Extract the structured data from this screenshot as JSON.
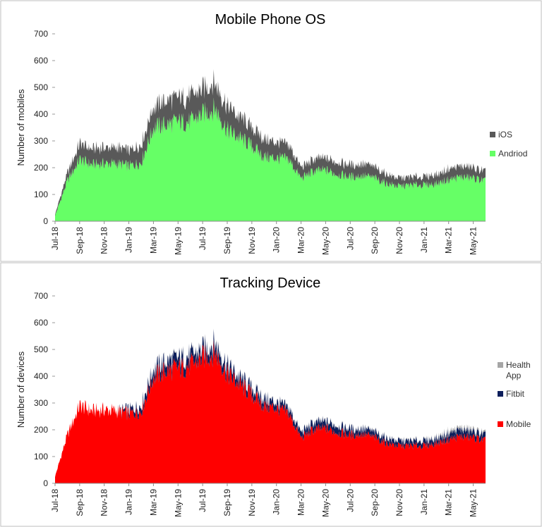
{
  "chart_data": [
    {
      "type": "area",
      "stacked": true,
      "title": "Mobile Phone OS",
      "xlabel": "",
      "ylabel": "Number of mobiles",
      "ylim": [
        0,
        700
      ],
      "yticks": [
        0,
        100,
        200,
        300,
        400,
        500,
        600,
        700
      ],
      "xticks": [
        "Jul-18",
        "Sep-18",
        "Nov-18",
        "Jan-19",
        "Mar-19",
        "May-19",
        "Jul-19",
        "Sep-19",
        "Nov-19",
        "Jan-20",
        "Mar-20",
        "May-20",
        "Jul-20",
        "Sep-20",
        "Nov-20",
        "Jan-21",
        "Mar-21",
        "May-21"
      ],
      "grid": false,
      "legend_position": "right",
      "x": [
        "Jul-18",
        "Aug-18",
        "Sep-18",
        "Oct-18",
        "Nov-18",
        "Dec-18",
        "Jan-19",
        "Feb-19",
        "Mar-19",
        "Apr-19",
        "May-19",
        "Jun-19",
        "Jul-19",
        "Aug-19",
        "Sep-19",
        "Oct-19",
        "Nov-19",
        "Dec-19",
        "Jan-20",
        "Feb-20",
        "Mar-20",
        "Apr-20",
        "May-20",
        "Jun-20",
        "Jul-20",
        "Aug-20",
        "Sep-20",
        "Oct-20",
        "Nov-20",
        "Dec-20",
        "Jan-21",
        "Feb-21",
        "Mar-21",
        "Apr-21",
        "May-21",
        "Jun-21"
      ],
      "series": [
        {
          "name": "Andriod",
          "color": "#66ff66",
          "values": [
            20,
            150,
            230,
            210,
            215,
            215,
            205,
            220,
            350,
            360,
            370,
            370,
            400,
            420,
            340,
            310,
            280,
            240,
            235,
            230,
            160,
            185,
            190,
            175,
            165,
            170,
            160,
            140,
            130,
            135,
            135,
            140,
            155,
            165,
            160,
            150
          ]
        },
        {
          "name": "iOS",
          "color": "#595959",
          "values": [
            5,
            30,
            60,
            60,
            60,
            60,
            60,
            65,
            80,
            90,
            90,
            95,
            95,
            100,
            90,
            80,
            70,
            65,
            60,
            55,
            40,
            45,
            45,
            45,
            45,
            45,
            40,
            35,
            30,
            30,
            30,
            35,
            40,
            40,
            40,
            35
          ]
        }
      ]
    },
    {
      "type": "area",
      "stacked": true,
      "title": "Tracking Device",
      "xlabel": "",
      "ylabel": "Number of devices",
      "ylim": [
        0,
        700
      ],
      "yticks": [
        0,
        100,
        200,
        300,
        400,
        500,
        600,
        700
      ],
      "xticks": [
        "Jul-18",
        "Sep-18",
        "Nov-18",
        "Jan-19",
        "Mar-19",
        "May-19",
        "Jul-19",
        "Sep-19",
        "Nov-19",
        "Jan-20",
        "Mar-20",
        "May-20",
        "Jul-20",
        "Sep-20",
        "Nov-20",
        "Jan-21",
        "Mar-21",
        "May-21"
      ],
      "grid": false,
      "legend_position": "right",
      "x": [
        "Jul-18",
        "Aug-18",
        "Sep-18",
        "Oct-18",
        "Nov-18",
        "Dec-18",
        "Jan-19",
        "Feb-19",
        "Mar-19",
        "Apr-19",
        "May-19",
        "Jun-19",
        "Jul-19",
        "Aug-19",
        "Sep-19",
        "Oct-19",
        "Nov-19",
        "Dec-19",
        "Jan-20",
        "Feb-20",
        "Mar-20",
        "Apr-20",
        "May-20",
        "Jun-20",
        "Jul-20",
        "Aug-20",
        "Sep-20",
        "Oct-20",
        "Nov-20",
        "Dec-20",
        "Jan-21",
        "Feb-21",
        "Mar-21",
        "Apr-21",
        "May-21",
        "Jun-21"
      ],
      "series": [
        {
          "name": "Mobile",
          "color": "#ff0000",
          "values": [
            25,
            180,
            290,
            270,
            275,
            270,
            260,
            270,
            400,
            420,
            430,
            440,
            470,
            490,
            410,
            370,
            330,
            290,
            280,
            260,
            170,
            200,
            205,
            190,
            180,
            185,
            170,
            150,
            140,
            140,
            140,
            150,
            165,
            175,
            170,
            160
          ]
        },
        {
          "name": "Fitbit",
          "color": "#0d1f5c",
          "values": [
            0,
            0,
            0,
            0,
            0,
            0,
            15,
            20,
            30,
            35,
            35,
            35,
            30,
            35,
            30,
            25,
            25,
            25,
            22,
            20,
            20,
            25,
            25,
            25,
            22,
            20,
            20,
            18,
            18,
            18,
            18,
            18,
            22,
            25,
            22,
            20
          ]
        },
        {
          "name": "Health\nApp",
          "color": "#a6a6a6",
          "values": [
            0,
            0,
            0,
            0,
            0,
            0,
            0,
            0,
            2,
            2,
            3,
            3,
            3,
            3,
            2,
            2,
            2,
            2,
            2,
            2,
            2,
            2,
            2,
            2,
            2,
            2,
            2,
            2,
            2,
            3,
            3,
            4,
            8,
            8,
            8,
            6
          ]
        }
      ]
    }
  ]
}
